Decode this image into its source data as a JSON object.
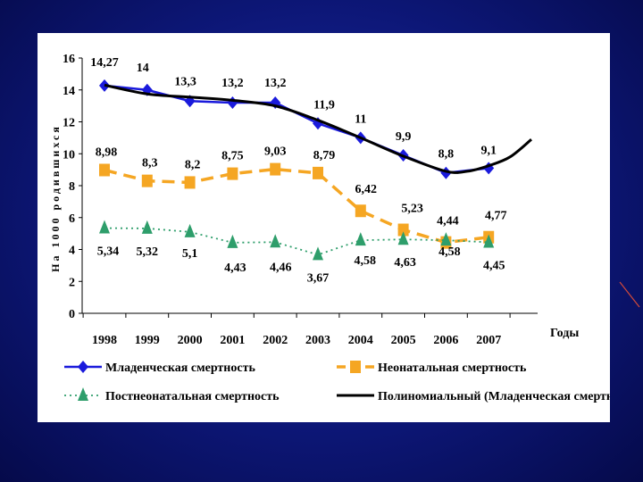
{
  "chart_data": {
    "type": "line",
    "xlabel": "Годы",
    "ylabel": "На 1000 родившихся",
    "ylim": [
      0,
      16
    ],
    "yticks": [
      0,
      2,
      4,
      6,
      8,
      10,
      12,
      14,
      16
    ],
    "categories": [
      "1998",
      "1999",
      "2000",
      "2001",
      "2002",
      "2003",
      "2004",
      "2005",
      "2006",
      "2007"
    ],
    "grid": false,
    "legend_position": "bottom",
    "series": [
      {
        "name": "Младенческая смертность",
        "color": "#1a1adc",
        "marker": "diamond",
        "values": [
          14.27,
          14,
          13.3,
          13.2,
          13.2,
          11.9,
          11,
          9.9,
          8.8,
          9.1
        ],
        "labels": [
          "14,27",
          "14",
          "13,3",
          "13,2",
          "13,2",
          "11,9",
          "11",
          "9,9",
          "8,8",
          "9,1"
        ]
      },
      {
        "name": "Неонатальная смертность",
        "color": "#f5a623",
        "marker": "square",
        "values": [
          8.98,
          8.3,
          8.2,
          8.75,
          9.03,
          8.79,
          6.42,
          5.23,
          4.44,
          4.77
        ],
        "labels": [
          "8,98",
          "8,3",
          "8,2",
          "8,75",
          "9,03",
          "8,79",
          "6,42",
          "5,23",
          "4,44",
          "4,77"
        ]
      },
      {
        "name": "Постнеонатальная смертность",
        "color": "#2e9e6b",
        "marker": "triangle",
        "values": [
          5.34,
          5.32,
          5.1,
          4.43,
          4.46,
          3.67,
          4.58,
          4.63,
          4.58,
          4.45
        ],
        "labels": [
          "5,34",
          "5,32",
          "5,1",
          "4,43",
          "4,46",
          "3,67",
          "4,58",
          "4,63",
          "4,58",
          "4,45"
        ]
      },
      {
        "name": "Полиномиальный (Младенческая смертность)",
        "color": "#000000",
        "marker": "none",
        "x": [
          1998,
          1999,
          2000,
          2001,
          2002,
          2003,
          2004,
          2005,
          2006,
          2006.5,
          2007,
          2007.5,
          2008
        ],
        "values": [
          14.3,
          13.75,
          13.55,
          13.35,
          13.0,
          12.1,
          11.0,
          9.85,
          8.9,
          8.9,
          9.25,
          9.8,
          10.9
        ]
      }
    ]
  }
}
